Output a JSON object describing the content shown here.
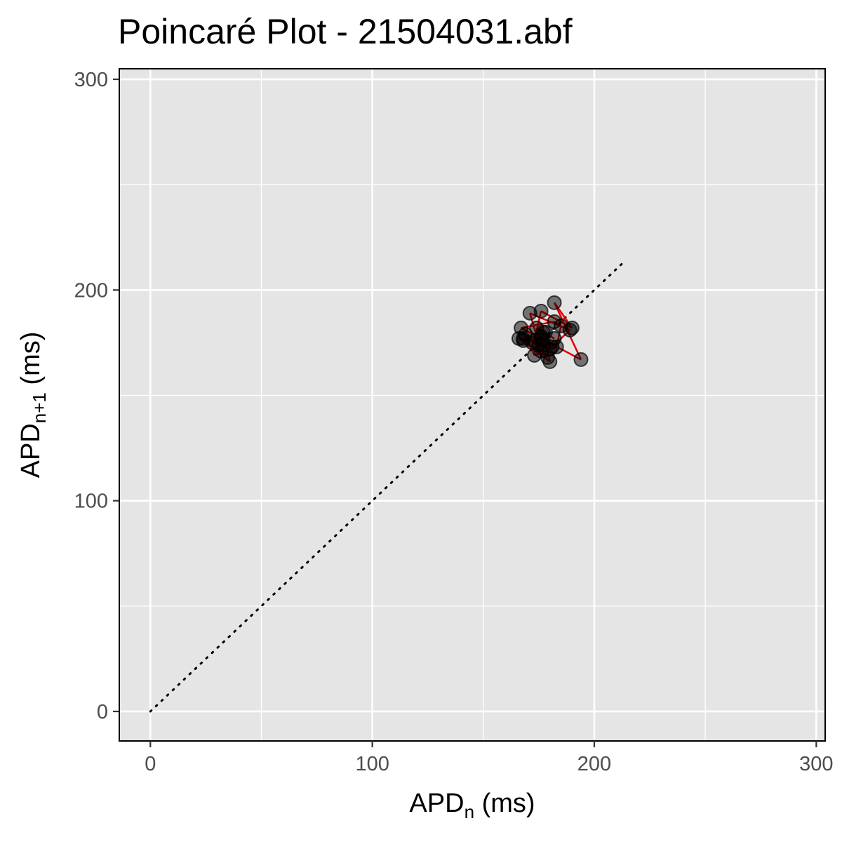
{
  "chart_data": {
    "type": "scatter",
    "title": "Poincaré Plot - 21504031.abf",
    "xlabel": {
      "base": "APD",
      "sub": "n",
      "suffix": " (ms)"
    },
    "ylabel": {
      "base": "APD",
      "sub": "n+1",
      "suffix": " (ms)"
    },
    "xlim": [
      -14,
      304
    ],
    "ylim": [
      -14,
      305
    ],
    "x_ticks": [
      0,
      100,
      200,
      300
    ],
    "y_ticks": [
      0,
      100,
      200,
      300
    ],
    "x_tick_labels": [
      "0",
      "100",
      "200",
      "300"
    ],
    "y_tick_labels": [
      "0",
      "100",
      "200",
      "300"
    ],
    "grid": true,
    "identity_line": {
      "x": [
        0,
        214
      ],
      "y": [
        0,
        214
      ],
      "style": "dotted",
      "color": "#000000"
    },
    "trajectory_color": "#e00000",
    "point_color": "#000000",
    "point_alpha": 0.5,
    "points": [
      {
        "x": 168,
        "y": 177
      },
      {
        "x": 177,
        "y": 176
      },
      {
        "x": 176,
        "y": 171
      },
      {
        "x": 171,
        "y": 189
      },
      {
        "x": 189,
        "y": 181
      },
      {
        "x": 181,
        "y": 173
      },
      {
        "x": 173,
        "y": 176
      },
      {
        "x": 176,
        "y": 190
      },
      {
        "x": 190,
        "y": 182
      },
      {
        "x": 182,
        "y": 194
      },
      {
        "x": 194,
        "y": 167
      },
      {
        "x": 167,
        "y": 182
      },
      {
        "x": 182,
        "y": 185
      },
      {
        "x": 185,
        "y": 183
      },
      {
        "x": 183,
        "y": 173
      },
      {
        "x": 173,
        "y": 169
      },
      {
        "x": 169,
        "y": 179
      },
      {
        "x": 179,
        "y": 168
      },
      {
        "x": 168,
        "y": 176
      },
      {
        "x": 176,
        "y": 178
      },
      {
        "x": 178,
        "y": 180
      },
      {
        "x": 180,
        "y": 172
      },
      {
        "x": 172,
        "y": 175
      },
      {
        "x": 175,
        "y": 174
      },
      {
        "x": 174,
        "y": 182
      },
      {
        "x": 182,
        "y": 177
      },
      {
        "x": 177,
        "y": 180
      },
      {
        "x": 180,
        "y": 166
      },
      {
        "x": 166,
        "y": 177
      },
      {
        "x": 177,
        "y": 174
      }
    ]
  }
}
